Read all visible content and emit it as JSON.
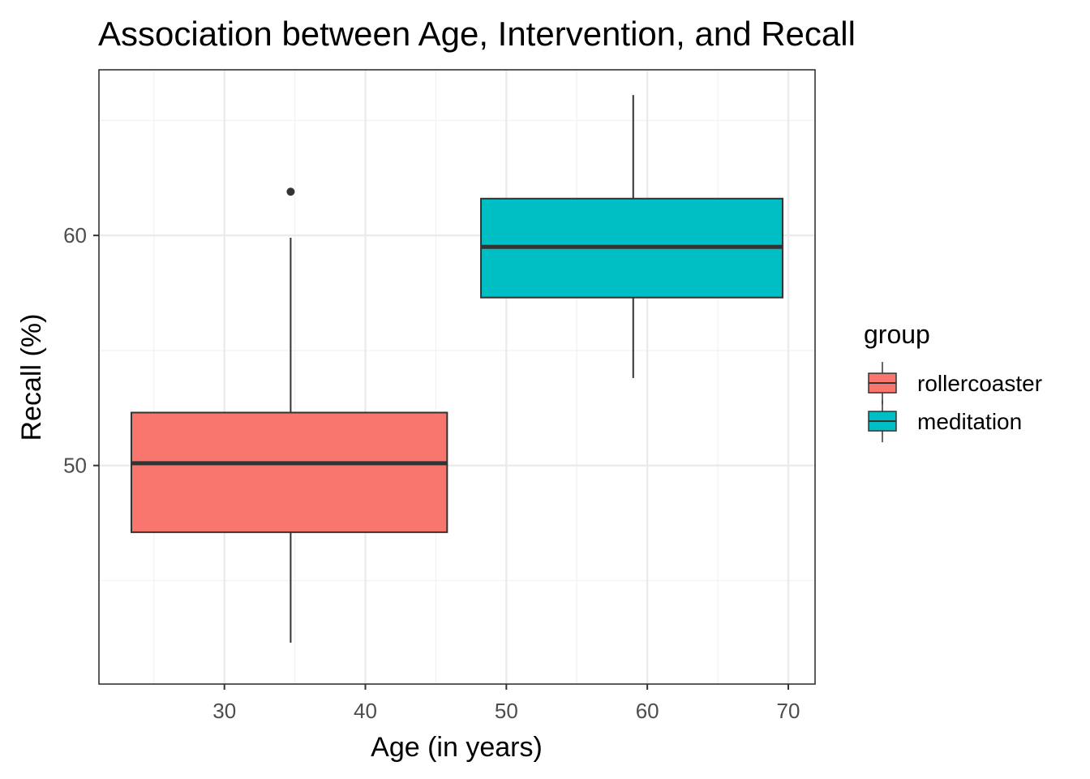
{
  "chart_data": {
    "type": "boxplot",
    "title": "Association between Age, Intervention, and Recall",
    "xlabel": "Age (in years)",
    "ylabel": "Recall (%)",
    "xlim": [
      21.1,
      71.9
    ],
    "ylim": [
      40.5,
      67.2
    ],
    "xticks": [
      30,
      40,
      50,
      60,
      70
    ],
    "yticks": [
      50,
      60
    ],
    "grid": true,
    "legend": {
      "title": "group",
      "position": "right"
    },
    "series": [
      {
        "name": "rollercoaster",
        "color": "#F8766D",
        "x_center": 34.7,
        "x_min": 23.4,
        "x_max": 45.8,
        "whisker_low": 42.3,
        "q1": 47.1,
        "median": 50.1,
        "q3": 52.3,
        "whisker_high": 59.9,
        "outliers": [
          61.9
        ]
      },
      {
        "name": "meditation",
        "color": "#00BFC4",
        "x_center": 59.0,
        "x_min": 48.2,
        "x_max": 69.6,
        "whisker_low": 53.8,
        "q1": 57.3,
        "median": 59.5,
        "q3": 61.6,
        "whisker_high": 66.1,
        "outliers": []
      }
    ]
  }
}
